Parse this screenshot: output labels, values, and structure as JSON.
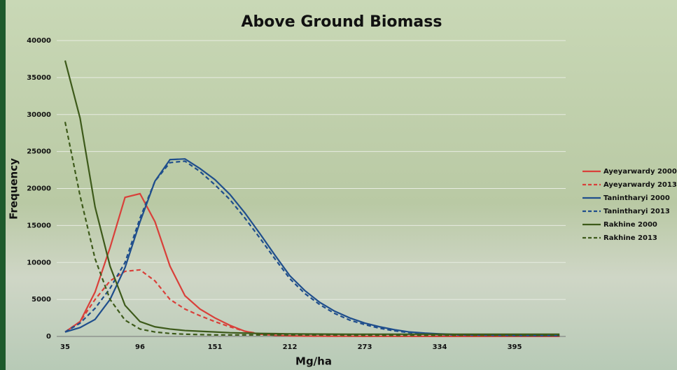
{
  "chart_data": {
    "type": "line",
    "title": "Above Ground Biomass",
    "x_label": "Mg/ha",
    "y_label": "Frequency",
    "categories": [
      "35",
      null,
      null,
      null,
      null,
      "96",
      null,
      null,
      null,
      null,
      "151",
      null,
      null,
      null,
      null,
      "212",
      null,
      null,
      null,
      null,
      "273",
      null,
      null,
      null,
      null,
      "334",
      null,
      null,
      null,
      null,
      "395",
      null,
      null,
      null
    ],
    "ylim": [
      0,
      40000
    ],
    "yticks": [
      0,
      5000,
      10000,
      15000,
      20000,
      25000,
      30000,
      35000,
      40000
    ],
    "grid": true,
    "legend": "right",
    "series": [
      {
        "name": "Ayeyarwardy 2000",
        "color": "#d9403a",
        "dash": false,
        "values": [
          600,
          2000,
          6000,
          12000,
          18800,
          19300,
          15500,
          9500,
          5500,
          3700,
          2500,
          1500,
          700,
          300,
          150,
          80,
          50,
          40,
          30,
          30,
          20,
          20,
          20,
          20,
          10,
          10,
          10,
          10,
          10,
          10,
          10,
          10,
          10,
          10
        ]
      },
      {
        "name": "Ayeyarwardy 2013",
        "color": "#d9403a",
        "dash": true,
        "values": [
          600,
          2000,
          5000,
          7500,
          8800,
          9000,
          7500,
          5000,
          3700,
          2800,
          2000,
          1300,
          700,
          350,
          200,
          100,
          60,
          40,
          30,
          30,
          20,
          20,
          20,
          20,
          10,
          10,
          10,
          10,
          10,
          10,
          10,
          10,
          10,
          10
        ]
      },
      {
        "name": "Tanintharyi 2000",
        "color": "#1f4e8c",
        "dash": false,
        "values": [
          600,
          1200,
          2300,
          5000,
          9300,
          15500,
          21000,
          23900,
          24000,
          22700,
          21200,
          19200,
          16700,
          13900,
          11000,
          8200,
          6200,
          4600,
          3400,
          2500,
          1800,
          1300,
          900,
          600,
          450,
          350,
          280,
          220,
          180,
          150,
          130,
          120,
          110,
          100
        ]
      },
      {
        "name": "Tanintharyi 2013",
        "color": "#1f4e8c",
        "dash": true,
        "values": [
          600,
          1800,
          3800,
          6500,
          10000,
          16000,
          21000,
          23500,
          23700,
          22300,
          20500,
          18500,
          16000,
          13300,
          10500,
          7800,
          5800,
          4300,
          3100,
          2200,
          1600,
          1100,
          750,
          500,
          350,
          250,
          200,
          170,
          150,
          130,
          120,
          110,
          100,
          100
        ]
      },
      {
        "name": "Rakhine 2000",
        "color": "#3d5a1a",
        "dash": false,
        "values": [
          37300,
          29500,
          17500,
          9500,
          4200,
          2000,
          1300,
          1000,
          800,
          700,
          600,
          500,
          450,
          400,
          380,
          350,
          330,
          320,
          310,
          300,
          300,
          300,
          300,
          300,
          300,
          300,
          300,
          300,
          300,
          300,
          300,
          300,
          300,
          300
        ]
      },
      {
        "name": "Rakhine 2013",
        "color": "#3d5a1a",
        "dash": true,
        "values": [
          29000,
          19000,
          10500,
          5000,
          2200,
          1000,
          600,
          400,
          300,
          250,
          200,
          200,
          200,
          200,
          200,
          200,
          200,
          200,
          200,
          150,
          150,
          150,
          150,
          150,
          150,
          150,
          150,
          150,
          150,
          150,
          150,
          150,
          150,
          150
        ]
      }
    ]
  }
}
